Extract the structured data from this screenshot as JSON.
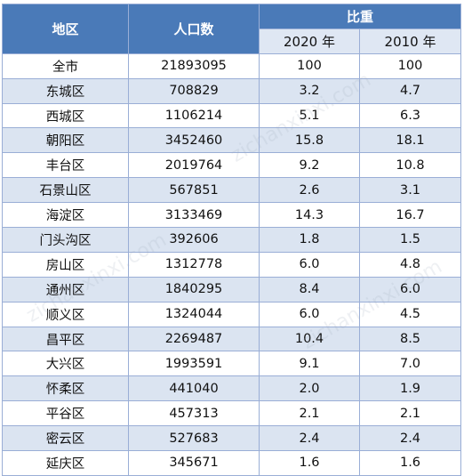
{
  "header": {
    "region": "地区",
    "population": "人口数",
    "share": "比重",
    "year_2020": "2020 年",
    "year_2010": "2010 年"
  },
  "rows": [
    {
      "region": "全市",
      "population": "21893095",
      "share_2020": "100",
      "share_2010": "100"
    },
    {
      "region": "东城区",
      "population": "708829",
      "share_2020": "3.2",
      "share_2010": "4.7"
    },
    {
      "region": "西城区",
      "population": "1106214",
      "share_2020": "5.1",
      "share_2010": "6.3"
    },
    {
      "region": "朝阳区",
      "population": "3452460",
      "share_2020": "15.8",
      "share_2010": "18.1"
    },
    {
      "region": "丰台区",
      "population": "2019764",
      "share_2020": "9.2",
      "share_2010": "10.8"
    },
    {
      "region": "石景山区",
      "population": "567851",
      "share_2020": "2.6",
      "share_2010": "3.1"
    },
    {
      "region": "海淀区",
      "population": "3133469",
      "share_2020": "14.3",
      "share_2010": "16.7"
    },
    {
      "region": "门头沟区",
      "population": "392606",
      "share_2020": "1.8",
      "share_2010": "1.5"
    },
    {
      "region": "房山区",
      "population": "1312778",
      "share_2020": "6.0",
      "share_2010": "4.8"
    },
    {
      "region": "通州区",
      "population": "1840295",
      "share_2020": "8.4",
      "share_2010": "6.0"
    },
    {
      "region": "顺义区",
      "population": "1324044",
      "share_2020": "6.0",
      "share_2010": "4.5"
    },
    {
      "region": "昌平区",
      "population": "2269487",
      "share_2020": "10.4",
      "share_2010": "8.5"
    },
    {
      "region": "大兴区",
      "population": "1993591",
      "share_2020": "9.1",
      "share_2010": "7.0"
    },
    {
      "region": "怀柔区",
      "population": "441040",
      "share_2020": "2.0",
      "share_2010": "1.9"
    },
    {
      "region": "平谷区",
      "population": "457313",
      "share_2020": "2.1",
      "share_2010": "2.1"
    },
    {
      "region": "密云区",
      "population": "527683",
      "share_2020": "2.4",
      "share_2010": "2.4"
    },
    {
      "region": "延庆区",
      "population": "345671",
      "share_2020": "1.6",
      "share_2010": "1.6"
    }
  ],
  "watermark": "zichanxinxi.com",
  "colors": {
    "header_bg": "#4a7ab8",
    "subheader_bg": "#dfe7f3",
    "stripe_bg": "#dbe4f1",
    "border": "#9aaed6"
  }
}
